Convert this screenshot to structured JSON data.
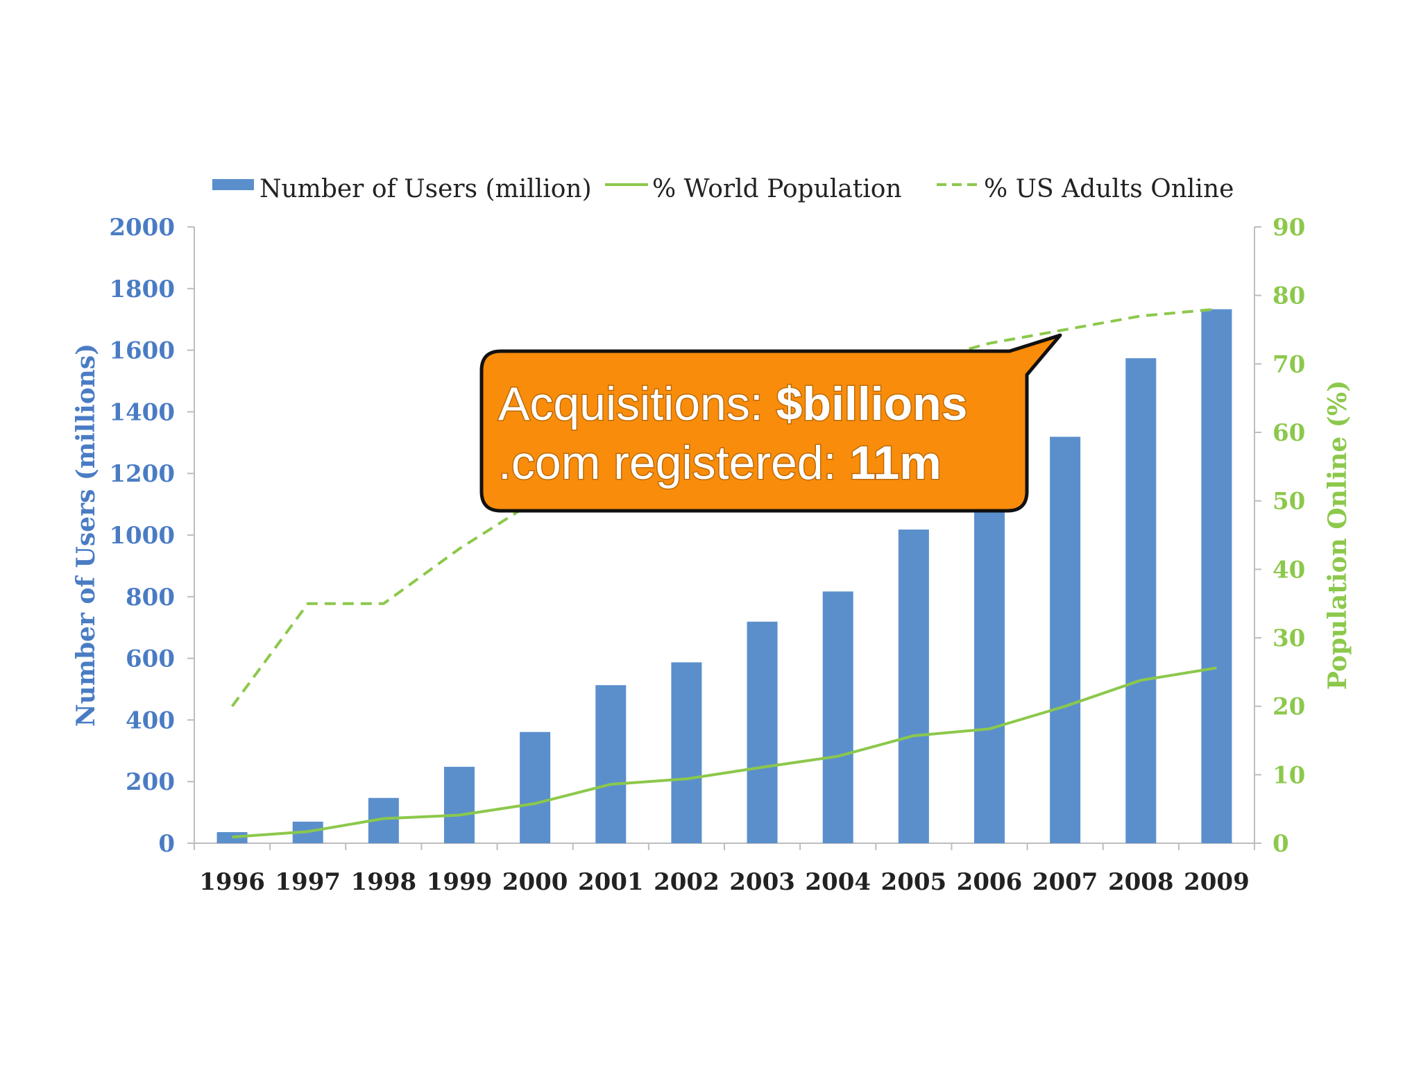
{
  "chart_data": {
    "type": "bar",
    "categories": [
      "1996",
      "1997",
      "1998",
      "1999",
      "2000",
      "2001",
      "2002",
      "2003",
      "2004",
      "2005",
      "2006",
      "2007",
      "2008",
      "2009"
    ],
    "series": [
      {
        "name": "Number of Users (million)",
        "kind": "bar",
        "axis": "left",
        "color": "#5b8fcc",
        "values": [
          36,
          70,
          147,
          248,
          361,
          513,
          587,
          719,
          817,
          1018,
          1093,
          1319,
          1574,
          1733
        ]
      },
      {
        "name": "% World Population",
        "kind": "line",
        "axis": "right",
        "color": "#8cc84b",
        "style": "solid",
        "values": [
          0.9,
          1.7,
          3.6,
          4.1,
          5.8,
          8.6,
          9.4,
          11.1,
          12.7,
          15.7,
          16.7,
          20.0,
          23.8,
          25.6
        ]
      },
      {
        "name": "% US Adults Online",
        "kind": "line",
        "axis": "right",
        "color": "#8cc84b",
        "style": "dashed",
        "values": [
          20,
          35,
          35,
          43,
          50,
          56,
          60,
          63,
          67,
          70,
          73,
          75,
          77,
          78
        ]
      }
    ],
    "ylabel": "Number of Users (millions)",
    "y2label": "Population Online (%)",
    "ylim": [
      0,
      2000
    ],
    "y2lim": [
      0,
      90
    ],
    "yticks": [
      "0",
      "200",
      "400",
      "600",
      "800",
      "1000",
      "1200",
      "1400",
      "1600",
      "1800",
      "2000"
    ],
    "y2ticks": [
      "0",
      "10",
      "20",
      "30",
      "40",
      "50",
      "60",
      "70",
      "80",
      "90"
    ],
    "legend_position": "top",
    "grid": false
  },
  "callout": {
    "line1_prefix": "Acquisitions: ",
    "line1_value": "$billions",
    "line2_prefix": ".com registered: ",
    "line2_value": "11m",
    "fill_color": "#f98c0a"
  }
}
